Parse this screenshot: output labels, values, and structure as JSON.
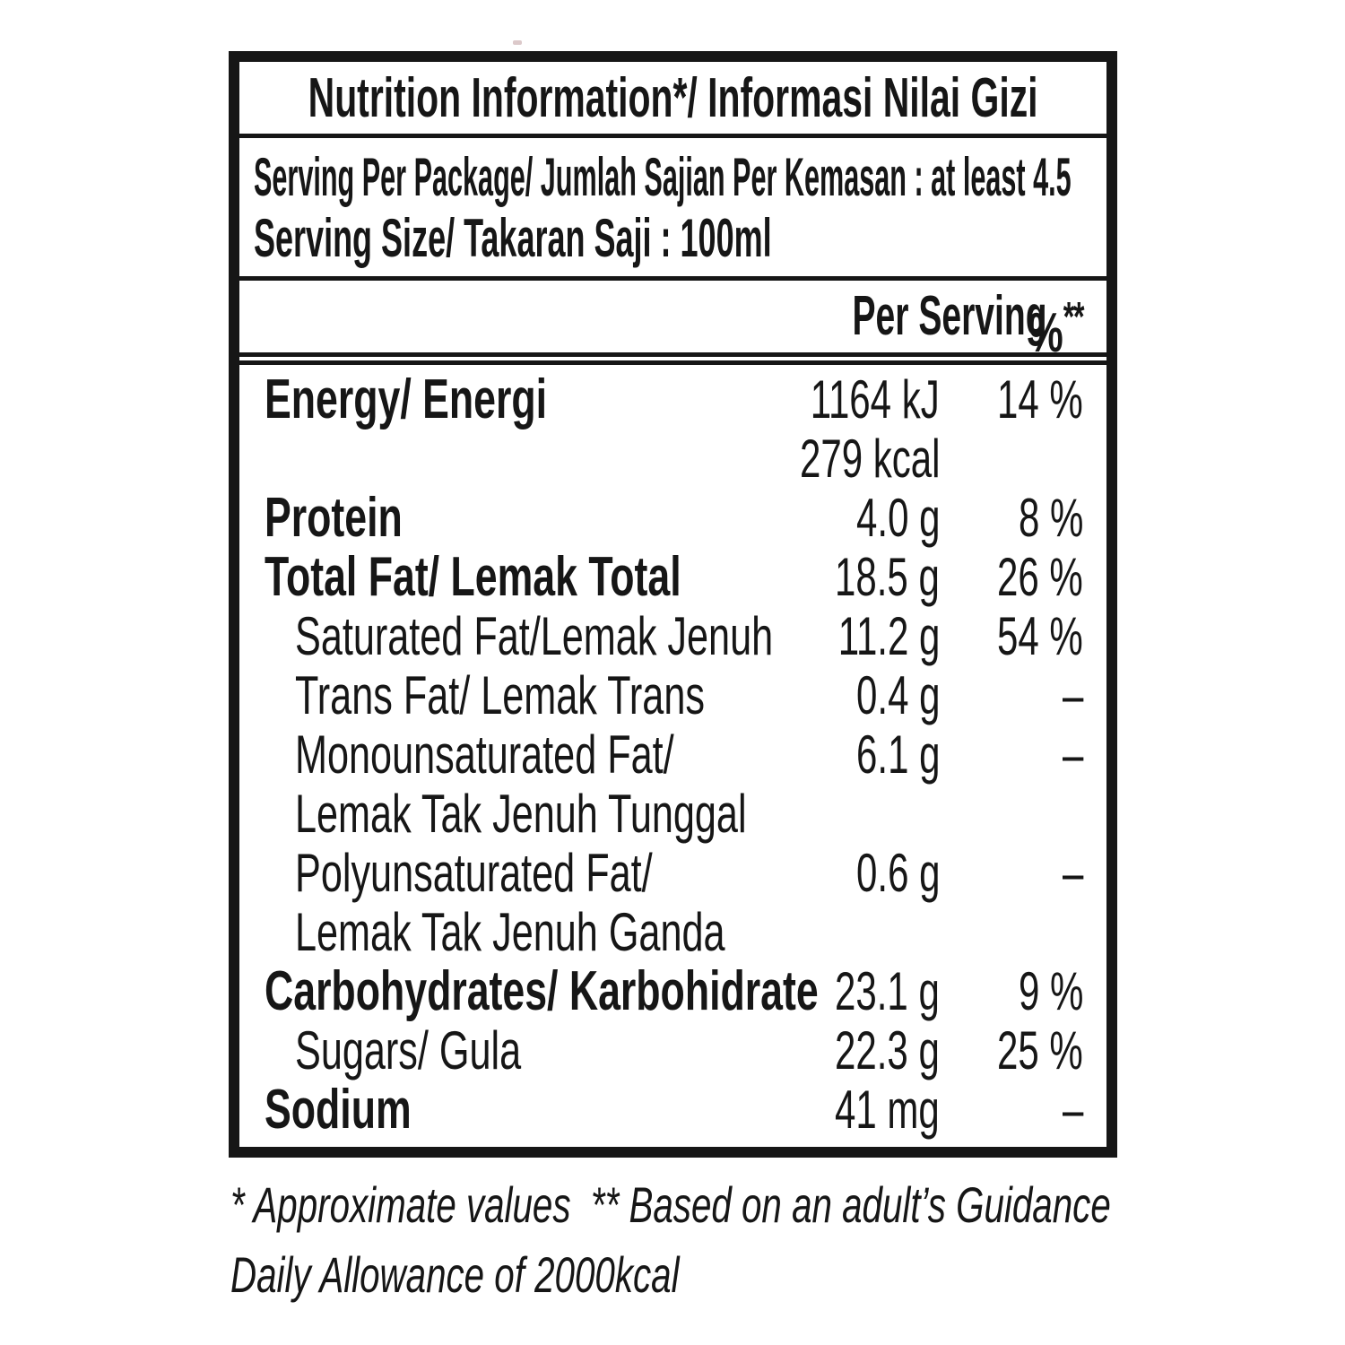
{
  "label": {
    "title": "Nutrition Information*/ Informasi Nilai Gizi",
    "serving_lines": [
      "Serving Per Package/ Jumlah Sajian Per Kemasan : at least 4.5",
      "Serving Size/ Takaran Saji : 100ml"
    ],
    "columns": {
      "per_serving": "Per Serving",
      "percent_symbol": "%",
      "percent_stars": "**"
    },
    "rows": [
      {
        "label": "Energy/ Energi",
        "value": "1164 kJ",
        "pct": "14 %"
      },
      {
        "label": "",
        "value": "279 kcal",
        "pct": ""
      },
      {
        "label": "Protein",
        "value": "4.0 g",
        "pct": "8 %"
      },
      {
        "label": "Total Fat/ Lemak Total",
        "value": "18.5 g",
        "pct": "26 %"
      },
      {
        "label": "Saturated Fat/Lemak Jenuh",
        "value": "11.2 g",
        "pct": "54 %"
      },
      {
        "label": "Trans Fat/ Lemak Trans",
        "value": "0.4 g",
        "pct": "–"
      },
      {
        "label": "Monounsaturated Fat/",
        "value": "6.1 g",
        "pct": "–"
      },
      {
        "label": "Lemak Tak Jenuh Tunggal",
        "value": "",
        "pct": ""
      },
      {
        "label": "Polyunsaturated Fat/",
        "value": "0.6 g",
        "pct": "–"
      },
      {
        "label": "Lemak Tak Jenuh Ganda",
        "value": "",
        "pct": ""
      },
      {
        "label": "Carbohydrates/ Karbohidrate",
        "value": "23.1 g",
        "pct": "9 %"
      },
      {
        "label": "Sugars/ Gula",
        "value": "22.3 g",
        "pct": "25 %"
      },
      {
        "label": "Sodium",
        "value": "41 mg",
        "pct": "–"
      }
    ],
    "footnote_lines": [
      "* Approximate values  ** Based on an adult’s Guidance",
      "Daily Allowance of 2000kcal"
    ],
    "colors": {
      "ink": "#161616",
      "paper": "#ffffff"
    }
  }
}
